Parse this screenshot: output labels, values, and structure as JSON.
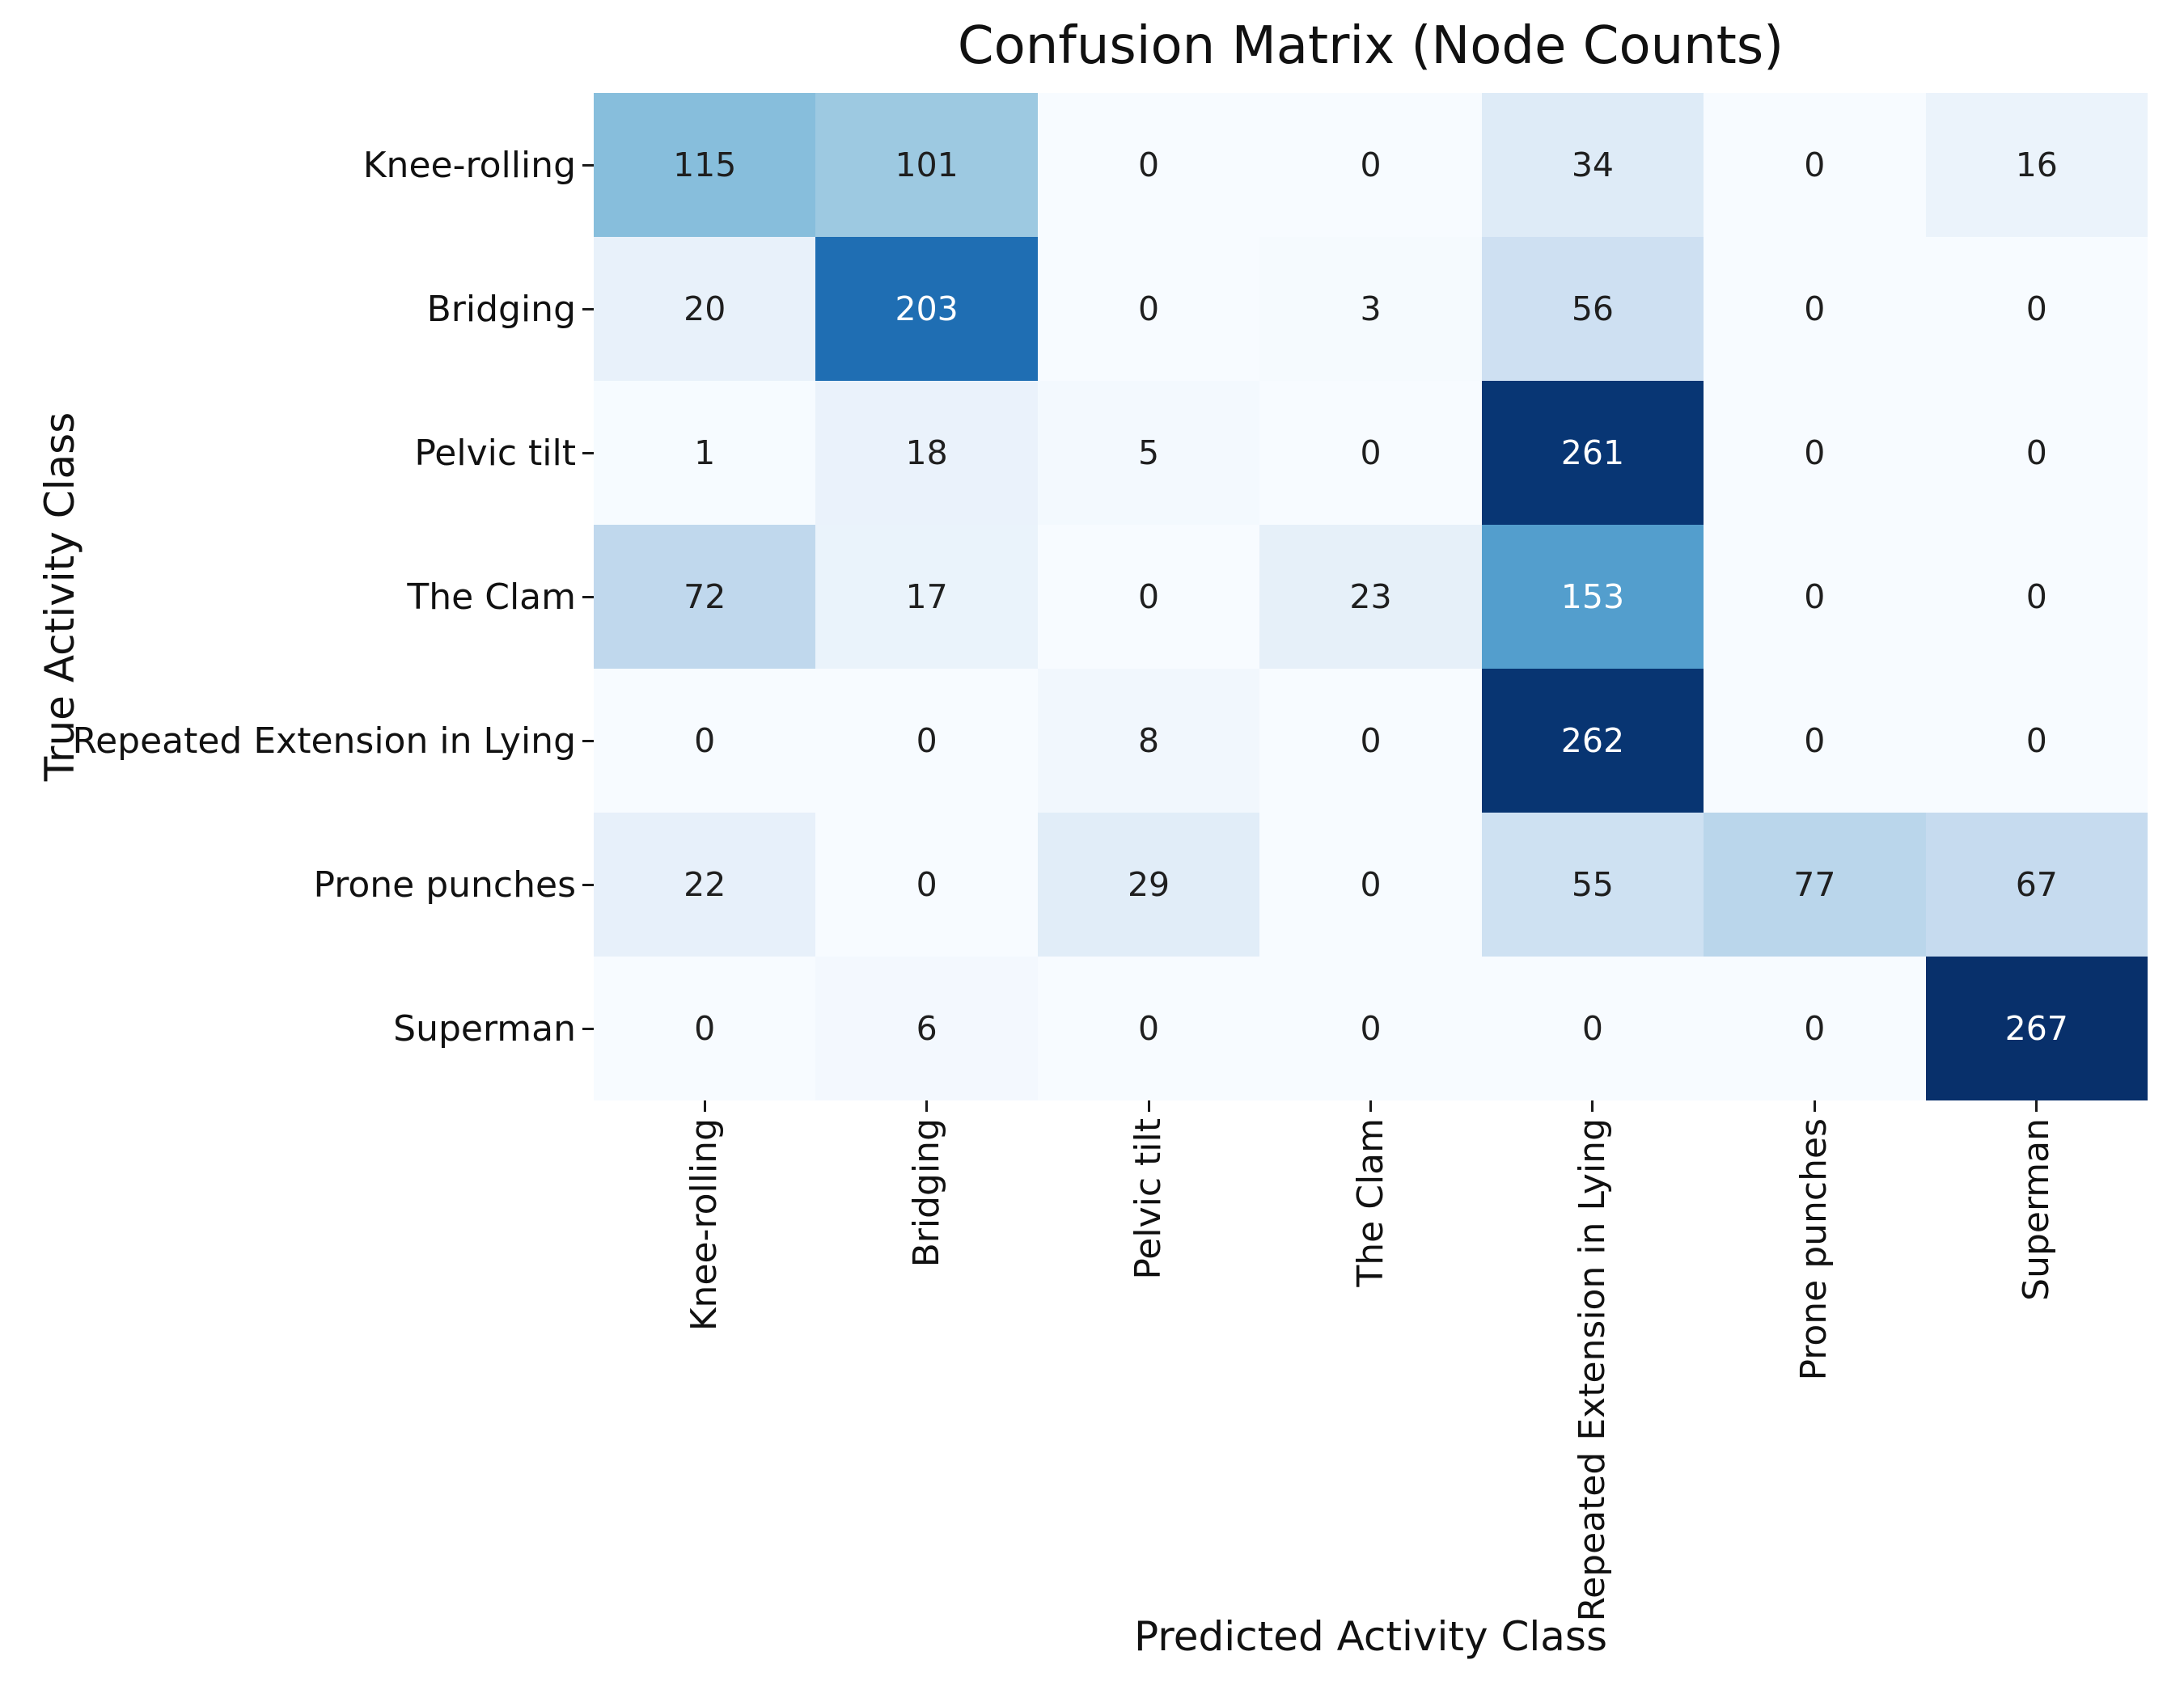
{
  "chart_data": {
    "type": "heatmap",
    "title": "Confusion Matrix (Node Counts)",
    "xlabel": "Predicted Activity Class",
    "ylabel": "True Activity Class",
    "categories": [
      "Knee-rolling",
      "Bridging",
      "Pelvic tilt",
      "The Clam",
      "Repeated Extension in Lying",
      "Prone punches",
      "Superman"
    ],
    "x_tick_labels": [
      "Knee-rolling",
      "Bridging",
      "Pelvic tilt",
      "The Clam",
      "Repeated Extension in Lying",
      "Prone punches",
      "Superman"
    ],
    "y_tick_labels": [
      "Knee-rolling",
      "Bridging",
      "Pelvic tilt",
      "The Clam",
      "Repeated Extension in Lying",
      "Prone punches",
      "Superman"
    ],
    "matrix": [
      [
        115,
        101,
        0,
        0,
        34,
        0,
        16
      ],
      [
        20,
        203,
        0,
        3,
        56,
        0,
        0
      ],
      [
        1,
        18,
        5,
        0,
        261,
        0,
        0
      ],
      [
        72,
        17,
        0,
        23,
        153,
        0,
        0
      ],
      [
        0,
        0,
        8,
        0,
        262,
        0,
        0
      ],
      [
        22,
        0,
        29,
        0,
        55,
        77,
        67
      ],
      [
        0,
        6,
        0,
        0,
        0,
        0,
        267
      ]
    ],
    "vmin": 0,
    "vmax": 267,
    "colormap": "Blues",
    "colormap_hex_stops": [
      "#f7fbff",
      "#deebf7",
      "#c6dbef",
      "#9ecae1",
      "#6baed6",
      "#4292c6",
      "#2171b5",
      "#08519c",
      "#08306b"
    ],
    "annotation_color_dark": "#1f1f1f",
    "annotation_color_light": "#ffffff",
    "tick_color": "#1a1a1a",
    "background_color": "#ffffff",
    "grid": false,
    "legend": "none"
  }
}
